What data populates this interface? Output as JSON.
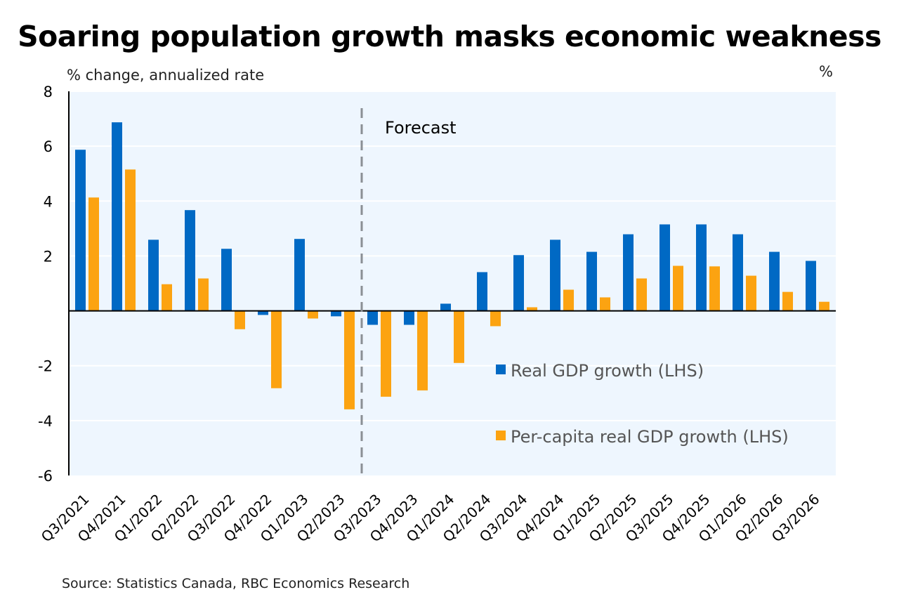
{
  "chart_data": {
    "type": "bar",
    "title": "Soaring population growth masks economic weakness",
    "ylabel": "% change, annualized rate",
    "y2label": "%",
    "ylim": [
      -6,
      8
    ],
    "yticks": [
      -6,
      -4,
      -2,
      0,
      2,
      4,
      6,
      8
    ],
    "ytick_labels": [
      "-6",
      "-4",
      "-2",
      "",
      "2",
      "4",
      "6",
      "8"
    ],
    "grid": true,
    "legend_position": "bottom-right",
    "annotation": "Forecast",
    "forecast_start_between": [
      "Q2/2023",
      "Q3/2023"
    ],
    "categories": [
      "Q3/2021",
      "Q4/2021",
      "Q1/2022",
      "Q2/2022",
      "Q3/2022",
      "Q4/2022",
      "Q1/2023",
      "Q2/2023",
      "Q3/2023",
      "Q4/2023",
      "Q1/2024",
      "Q2/2024",
      "Q3/2024",
      "Q4/2024",
      "Q1/2025",
      "Q2/2025",
      "Q3/2025",
      "Q4/2025",
      "Q1/2026",
      "Q2/2026",
      "Q3/2026"
    ],
    "series": [
      {
        "name": "Real GDP growth (LHS)",
        "color": "#0069c4",
        "values": [
          5.87,
          6.87,
          2.59,
          3.67,
          2.26,
          -0.15,
          2.62,
          -0.2,
          -0.51,
          -0.51,
          0.26,
          1.41,
          2.03,
          2.59,
          2.15,
          2.79,
          3.15,
          3.15,
          2.79,
          2.15,
          1.82
        ]
      },
      {
        "name": "Per-capita real GDP growth (LHS)",
        "color": "#fca311",
        "values": [
          4.13,
          5.15,
          0.97,
          1.18,
          -0.67,
          -2.82,
          -0.28,
          -3.59,
          -3.13,
          -2.9,
          -1.9,
          -0.56,
          0.13,
          0.77,
          0.49,
          1.18,
          1.64,
          1.62,
          1.28,
          0.69,
          0.33
        ]
      }
    ],
    "source": "Source: Statistics Canada, RBC Economics Research"
  },
  "colors": {
    "plot_background": "#eef6fe",
    "forecast_line": "#8a8f94"
  }
}
